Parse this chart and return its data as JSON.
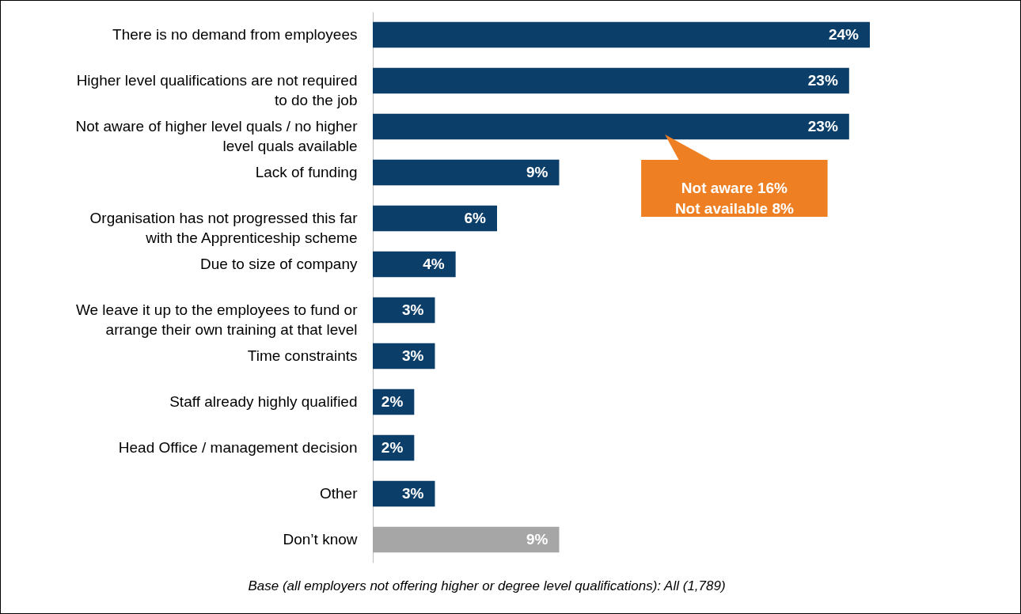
{
  "chart_data": {
    "type": "bar",
    "orientation": "horizontal",
    "categories": [
      "There is no demand from employees",
      "Higher level qualifications are not required to do the job",
      "Not aware of higher level quals / no higher level quals available",
      "Lack of funding",
      "Organisation has not progressed this far with the Apprenticeship scheme",
      "Due to size of company",
      "We leave it up to the employees to fund or arrange their own training at that level",
      "Time constraints",
      "Staff already highly qualified",
      "Head Office / management decision",
      "Other",
      "Don’t know"
    ],
    "values": [
      24,
      23,
      23,
      9,
      6,
      4,
      3,
      3,
      2,
      2,
      3,
      9
    ],
    "value_labels": [
      "24%",
      "23%",
      "23%",
      "9%",
      "6%",
      "4%",
      "3%",
      "3%",
      "2%",
      "2%",
      "3%",
      "9%"
    ],
    "colors": [
      "#0b3f69",
      "#0b3f69",
      "#0b3f69",
      "#0b3f69",
      "#0b3f69",
      "#0b3f69",
      "#0b3f69",
      "#0b3f69",
      "#0b3f69",
      "#0b3f69",
      "#0b3f69",
      "#a6a6a6"
    ],
    "annotations": [
      "Not aware 16%\nNot available 8%",
      "Base (all employers not offering higher or degree level qualifications): All (1,789)"
    ]
  }
}
